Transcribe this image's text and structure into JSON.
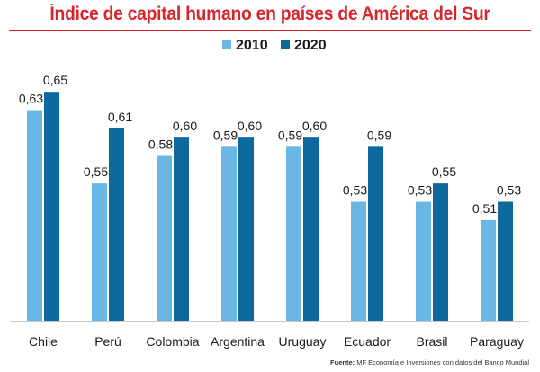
{
  "chart_data": {
    "type": "bar",
    "title": "Índice de capital humano en países de América del Sur",
    "categories": [
      "Chile",
      "Perú",
      "Colombia",
      "Argentina",
      "Uruguay",
      "Ecuador",
      "Brasil",
      "Paraguay"
    ],
    "series": [
      {
        "name": "2010",
        "values": [
          0.63,
          0.55,
          0.58,
          0.59,
          0.59,
          0.53,
          0.53,
          0.51
        ],
        "labels": [
          "0,63",
          "0,55",
          "0,58",
          "0,59",
          "0,59",
          "0,53",
          "0,53",
          "0,51"
        ],
        "color": "#6ab7e6"
      },
      {
        "name": "2020",
        "values": [
          0.65,
          0.61,
          0.6,
          0.6,
          0.6,
          0.59,
          0.55,
          0.53
        ],
        "labels": [
          "0,65",
          "0,61",
          "0,60",
          "0,60",
          "0,60",
          "0,59",
          "0,55",
          "0,53"
        ],
        "color": "#0e6a9e"
      }
    ],
    "ylim": [
      0.4,
      0.66
    ],
    "legend_position": "top-center",
    "grid": false
  },
  "source": {
    "prefix": "Fuente:",
    "text": "MF Economía e Inversiones con datos del Banco Mundial"
  },
  "colors": {
    "title": "#d7262b",
    "background": "#ffffff"
  }
}
